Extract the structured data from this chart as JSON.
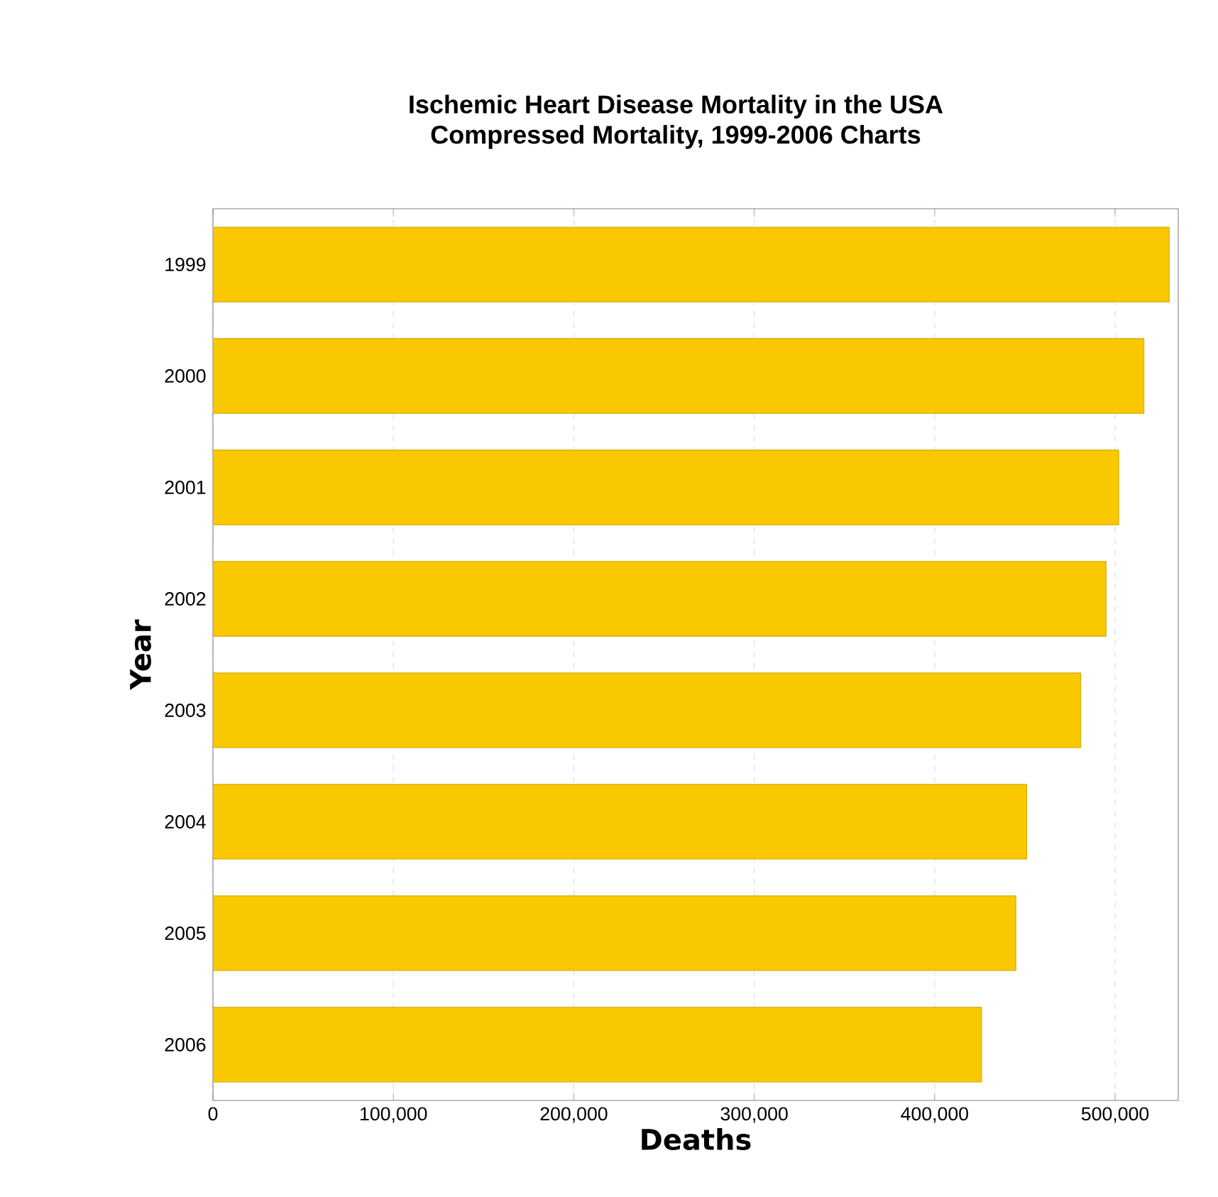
{
  "chart_data": {
    "type": "bar",
    "orientation": "horizontal",
    "title": "Ischemic Heart Disease Mortality in the USA",
    "subtitle": "Compressed Mortality, 1999-2006 Charts",
    "xlabel": "Deaths",
    "ylabel": "Year",
    "categories": [
      "1999",
      "2000",
      "2001",
      "2002",
      "2003",
      "2004",
      "2005",
      "2006"
    ],
    "values": [
      530000,
      516000,
      502000,
      495000,
      481000,
      451000,
      445000,
      426000
    ],
    "color": "#f9c800",
    "xlim": [
      0,
      535000
    ],
    "xticks": [
      {
        "value": 0,
        "label": "0"
      },
      {
        "value": 100000,
        "label": "100,000"
      },
      {
        "value": 200000,
        "label": "200,000"
      },
      {
        "value": 300000,
        "label": "300,000"
      },
      {
        "value": 400000,
        "label": "400,000"
      },
      {
        "value": 500000,
        "label": "500,000"
      }
    ],
    "grid": "x"
  }
}
